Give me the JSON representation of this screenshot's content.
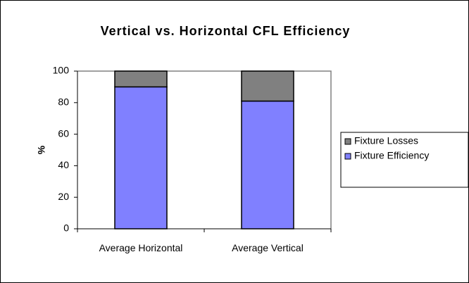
{
  "chart_data": {
    "type": "stacked_bar",
    "title": "Vertical vs. Horizontal CFL Efficiency",
    "y_label": "%",
    "categories": [
      "Average Horizontal",
      "Average Vertical"
    ],
    "series": [
      {
        "name": "Fixture Efficiency",
        "color": "#8080ff",
        "values": [
          90,
          81
        ]
      },
      {
        "name": "Fixture Losses",
        "color": "#808080",
        "values": [
          10,
          19
        ]
      }
    ],
    "ylim": [
      0,
      100
    ],
    "yticks": [
      0,
      20,
      40,
      60,
      80,
      100
    ],
    "grid": false,
    "legend": "right"
  }
}
